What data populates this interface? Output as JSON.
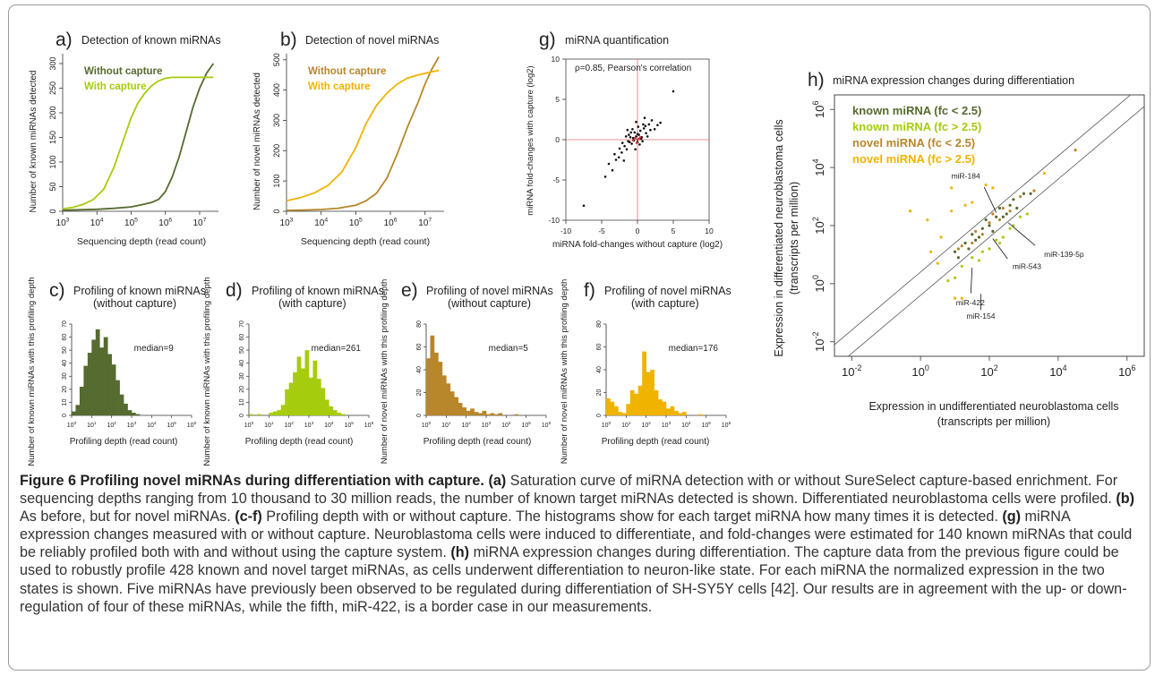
{
  "colors": {
    "known_dark": "#556b2f",
    "known_light": "#a6cc0e",
    "novel_dark": "#b8862b",
    "novel_light": "#f0b300",
    "frame": "#9a9a9a",
    "point": "#111111",
    "hline": "#e07070"
  },
  "caption": {
    "title": "Figure 6 Profiling novel miRNAs during differentiation with capture.",
    "a_tag": "(a)",
    "a_text": "Saturation curve of miRNA detection with or without SureSelect capture-based enrichment. For sequencing depths ranging from 10 thousand to 30 million reads, the number of known target miRNAs detected is shown. Differentiated neuroblastoma cells were profiled.",
    "b_tag": "(b)",
    "b_text": "As before, but for novel miRNAs.",
    "cf_tag": "(c-f)",
    "cf_text": "Profiling depth with or without capture. The histograms show for each target miRNA how many times it is detected.",
    "g_tag": "(g)",
    "g_text": "miRNA expression changes measured with or without capture. Neuroblastoma cells were induced to differentiate, and fold-changes were estimated for 140 known miRNAs that could be reliably profiled both with and without using the capture system.",
    "h_tag": "(h)",
    "h_text": "miRNA expression changes during differentiation. The capture data from the previous figure could be used to robustly profile 428 known and novel target miRNAs, as cells underwent differentiation to neuron-like state. For each miRNA the normalized expression in the two states is shown. Five miRNAs have previously been observed to be regulated during differentiation of SH-SY5Y cells [42]. Our results are in agreement with the up- or down-regulation of four of these miRNAs, while the fifth, miR-422, is a border case in our measurements."
  },
  "chart_data": [
    {
      "id": "a",
      "type": "line",
      "letter": "a)",
      "title": "Detection of known miRNAs",
      "xlabel": "Sequencing depth (read count)",
      "ylabel": "Number of known miRNAs detected",
      "xscale": "log",
      "xlim": [
        3,
        7.55
      ],
      "ylim": [
        0,
        320
      ],
      "xticks": [
        "10",
        "10",
        "10",
        "10",
        "10"
      ],
      "xtick_exp": [
        "3",
        "4",
        "5",
        "6",
        "7"
      ],
      "yticks": [
        "0",
        "50",
        "100",
        "150",
        "200",
        "250",
        "300"
      ],
      "legend_position": "top-left",
      "series": [
        {
          "name": "Without capture",
          "color": "#556b2f",
          "x": [
            3,
            3.5,
            4,
            4.5,
            5,
            5.3,
            5.6,
            5.8,
            6,
            6.2,
            6.4,
            6.6,
            6.8,
            7,
            7.2,
            7.4
          ],
          "y": [
            2,
            3,
            4,
            6,
            9,
            13,
            18,
            24,
            40,
            70,
            110,
            160,
            210,
            250,
            280,
            300
          ]
        },
        {
          "name": "With capture",
          "color": "#a6cc0e",
          "x": [
            3,
            3.3,
            3.6,
            3.9,
            4.2,
            4.5,
            4.8,
            5,
            5.2,
            5.4,
            5.6,
            5.8,
            6,
            6.2,
            6.4,
            7,
            7.4
          ],
          "y": [
            5,
            8,
            14,
            24,
            45,
            90,
            150,
            190,
            220,
            240,
            255,
            265,
            270,
            272,
            272,
            272,
            272
          ]
        }
      ]
    },
    {
      "id": "b",
      "type": "line",
      "letter": "b)",
      "title": "Detection of novel miRNAs",
      "xlabel": "Sequencing depth (read count)",
      "ylabel": "Number of novel miRNAs detected",
      "xscale": "log",
      "xlim": [
        3,
        7.55
      ],
      "ylim": [
        0,
        520
      ],
      "xticks": [
        "10",
        "10",
        "10",
        "10",
        "10"
      ],
      "xtick_exp": [
        "3",
        "4",
        "5",
        "6",
        "7"
      ],
      "yticks": [
        "0",
        "100",
        "200",
        "300",
        "400",
        "500"
      ],
      "legend_position": "top-left",
      "series": [
        {
          "name": "Without capture",
          "color": "#b8862b",
          "x": [
            3,
            3.5,
            4,
            4.5,
            5,
            5.3,
            5.6,
            5.9,
            6.2,
            6.5,
            6.8,
            7,
            7.2,
            7.4
          ],
          "y": [
            3,
            4,
            6,
            10,
            20,
            35,
            60,
            110,
            190,
            280,
            360,
            420,
            470,
            510
          ]
        },
        {
          "name": "With capture",
          "color": "#f0b300",
          "x": [
            3,
            3.4,
            3.8,
            4.2,
            4.6,
            5,
            5.3,
            5.6,
            5.9,
            6.2,
            6.5,
            6.8,
            7.1,
            7.4
          ],
          "y": [
            35,
            45,
            60,
            85,
            130,
            210,
            290,
            350,
            390,
            420,
            440,
            450,
            458,
            465
          ]
        }
      ]
    },
    {
      "id": "g",
      "type": "scatter",
      "letter": "g)",
      "title": "miRNA quantification",
      "xlabel": "miRNA fold-changes without capture (log2)",
      "ylabel": "miRNA fold-changes with capture (log2)",
      "annotation": "ρ=0.85, Pearson's correlation",
      "xlim": [
        -10,
        10
      ],
      "ylim": [
        -10,
        10
      ],
      "xticks": [
        "-10",
        "-5",
        "0",
        "5",
        "10"
      ],
      "yticks": [
        "-10",
        "-5",
        "0",
        "5",
        "10"
      ],
      "points": [
        [
          -7.5,
          -8.2
        ],
        [
          5,
          6
        ],
        [
          -4,
          -3
        ],
        [
          -3.5,
          -3.8
        ],
        [
          -3,
          -2.5
        ],
        [
          -2.6,
          -2.2
        ],
        [
          -2.2,
          -1.6
        ],
        [
          -1.8,
          -0.8
        ],
        [
          -1.5,
          -1.2
        ],
        [
          -1.3,
          -0.2
        ],
        [
          -1,
          0.3
        ],
        [
          -0.8,
          -0.5
        ],
        [
          -0.6,
          0.2
        ],
        [
          -0.4,
          0.9
        ],
        [
          -0.2,
          0.4
        ],
        [
          0,
          -0.3
        ],
        [
          0.2,
          0.6
        ],
        [
          0.4,
          1.1
        ],
        [
          0.6,
          0.3
        ],
        [
          0.9,
          1.4
        ],
        [
          1.2,
          0.8
        ],
        [
          1.6,
          1.9
        ],
        [
          2,
          2.4
        ],
        [
          2.4,
          1.3
        ],
        [
          -0.9,
          0.9
        ],
        [
          -1.2,
          0.6
        ],
        [
          -2.1,
          -0.4
        ],
        [
          -0.3,
          -1.2
        ],
        [
          0.1,
          1.6
        ],
        [
          0.8,
          1.9
        ],
        [
          -1.6,
          0.4
        ],
        [
          -0.5,
          -0.1
        ],
        [
          0.3,
          -0.6
        ],
        [
          1.1,
          1.7
        ],
        [
          -2.5,
          -1.1
        ],
        [
          -1.9,
          -2.6
        ],
        [
          -0.7,
          1.3
        ],
        [
          0.5,
          0.1
        ],
        [
          1.4,
          0.4
        ],
        [
          -3.2,
          -1.8
        ],
        [
          2.8,
          1.8
        ],
        [
          -1.1,
          -0.3
        ],
        [
          0,
          0.7
        ],
        [
          0.7,
          -0.2
        ],
        [
          1.8,
          1.2
        ],
        [
          -4.5,
          -4.6
        ],
        [
          -0.2,
          2.2
        ],
        [
          1,
          2.7
        ],
        [
          -1.4,
          1.2
        ],
        [
          3.2,
          2.1
        ]
      ],
      "red_points": [
        [
          -0.6,
          -0.1
        ],
        [
          -0.3,
          0.2
        ],
        [
          0,
          0
        ],
        [
          0.2,
          0.1
        ],
        [
          -0.1,
          -0.4
        ],
        [
          0.4,
          0.3
        ]
      ]
    },
    {
      "id": "c",
      "type": "bar",
      "letter": "c)",
      "title": "Profiling of known miRNAs",
      "subtitle": "(without capture)",
      "annotation": "median=9",
      "xlabel": "Profiling depth (read count)",
      "ylabel": "Number of known miRNAs with this profiling depth",
      "color": "#556b2f",
      "ylim": [
        0,
        70
      ],
      "xtick_exp": [
        "0",
        "1",
        "2",
        "3",
        "4",
        "5",
        "6"
      ],
      "yticks": [
        "0",
        "10",
        "20",
        "30",
        "40",
        "50",
        "60",
        "70"
      ],
      "values": [
        3,
        8,
        22,
        38,
        48,
        58,
        66,
        52,
        60,
        47,
        39,
        27,
        16,
        9,
        4,
        2,
        1,
        0,
        0,
        0,
        0,
        0,
        0,
        0,
        0,
        0,
        0,
        0,
        0,
        0
      ]
    },
    {
      "id": "d",
      "type": "bar",
      "letter": "d)",
      "title": "Profiling of known miRNAs",
      "subtitle": "(with capture)",
      "annotation": "median=261",
      "xlabel": "Profiling depth (read count)",
      "ylabel": "Number of known miRNAs with this profiling depth",
      "color": "#a6cc0e",
      "ylim": [
        0,
        70
      ],
      "xtick_exp": [
        "0",
        "1",
        "2",
        "3",
        "4",
        "5",
        "6"
      ],
      "yticks": [
        "0",
        "10",
        "20",
        "30",
        "40",
        "50",
        "60",
        "70"
      ],
      "values": [
        1,
        0,
        1,
        0,
        0,
        2,
        3,
        4,
        8,
        20,
        25,
        33,
        45,
        36,
        50,
        29,
        42,
        28,
        21,
        12,
        7,
        4,
        2,
        1,
        0,
        0,
        0,
        0,
        0,
        0
      ]
    },
    {
      "id": "e",
      "type": "bar",
      "letter": "e)",
      "title": "Profiling of novel miRNAs",
      "subtitle": "(without capture)",
      "annotation": "median=5",
      "xlabel": "Profiling depth (read count)",
      "ylabel": "Number of novel miRNAs with this profiling depth",
      "color": "#b8862b",
      "ylim": [
        0,
        80
      ],
      "xtick_exp": [
        "0",
        "1",
        "2",
        "3",
        "4",
        "5",
        "6"
      ],
      "yticks": [
        "0",
        "20",
        "40",
        "60",
        "80"
      ],
      "values": [
        50,
        70,
        55,
        47,
        35,
        28,
        21,
        16,
        11,
        7,
        4,
        6,
        3,
        2,
        4,
        1,
        2,
        1,
        2,
        0,
        0,
        0,
        1,
        0,
        0,
        0,
        0,
        0,
        0,
        0
      ]
    },
    {
      "id": "f",
      "type": "bar",
      "letter": "f)",
      "title": "Profiling of novel miRNAs",
      "subtitle": "(with capture)",
      "annotation": "median=176",
      "xlabel": "Profiling depth (read count)",
      "ylabel": "Number of novel miRNAs with this profiling depth",
      "color": "#f0b300",
      "ylim": [
        0,
        80
      ],
      "xtick_exp": [
        "0",
        "1",
        "2",
        "3",
        "4",
        "5",
        "6"
      ],
      "yticks": [
        "0",
        "20",
        "40",
        "60",
        "80"
      ],
      "values": [
        15,
        12,
        8,
        3,
        2,
        10,
        22,
        19,
        26,
        56,
        38,
        40,
        22,
        14,
        12,
        6,
        8,
        4,
        2,
        3,
        0,
        0,
        0,
        1,
        0,
        0,
        0,
        0,
        0,
        0
      ]
    },
    {
      "id": "h",
      "type": "scatter",
      "letter": "h)",
      "title": "miRNA expression changes during differentiation",
      "xlabel": "Expression in undifferentiated neuroblastoma cells",
      "xlabel2": "(transcripts per million)",
      "ylabel": "Expression in differentiated neuroblastoma cells",
      "ylabel2": "(transcripts per million)",
      "xscale": "log",
      "yscale": "log",
      "xlim": [
        -2.5,
        6.5
      ],
      "ylim": [
        -2.5,
        6.5
      ],
      "xtick_exp": [
        "-2",
        "0",
        "2",
        "4",
        "6"
      ],
      "ytick_exp": [
        "-2",
        "0",
        "2",
        "4",
        "6"
      ],
      "legend": [
        {
          "label": "known miRNA (fc < 2.5)",
          "color": "#556b2f"
        },
        {
          "label": "known miRNA (fc > 2.5)",
          "color": "#a6cc0e"
        },
        {
          "label": "novel miRNA (fc < 2.5)",
          "color": "#b8862b"
        },
        {
          "label": "novel miRNA (fc > 2.5)",
          "color": "#f0b300"
        }
      ],
      "annotations": [
        {
          "label": "miR-184",
          "x": 2.2,
          "y": 2.45
        },
        {
          "label": "miR-139-5p",
          "x": 2.55,
          "y": 2.1
        },
        {
          "label": "miR-543",
          "x": 2.1,
          "y": 1.55
        },
        {
          "label": "miR-422",
          "x": 1.5,
          "y": 0.55
        },
        {
          "label": "miR-154",
          "x": 1.75,
          "y": -0.35
        }
      ],
      "fold_lines": [
        0.4,
        -0.4
      ],
      "points_known_lo": [
        [
          1,
          1.1
        ],
        [
          1.3,
          1.4
        ],
        [
          1.6,
          1.5
        ],
        [
          1.8,
          1.9
        ],
        [
          2,
          2
        ],
        [
          2.2,
          2.3
        ],
        [
          2.4,
          2.3
        ],
        [
          2.6,
          2.7
        ],
        [
          2.8,
          2.6
        ],
        [
          3,
          3.1
        ],
        [
          1.1,
          0.9
        ],
        [
          1.5,
          1.7
        ],
        [
          2.1,
          1.8
        ],
        [
          2.5,
          2.4
        ],
        [
          1.9,
          2.2
        ],
        [
          1.4,
          1.2
        ],
        [
          2.3,
          2.6
        ],
        [
          2.7,
          2.9
        ],
        [
          3.2,
          3.1
        ],
        [
          1.7,
          1.6
        ]
      ],
      "points_known_hi": [
        [
          1.5,
          0.9
        ],
        [
          1.8,
          1.1
        ],
        [
          2.2,
          1.5
        ],
        [
          2.4,
          1.6
        ],
        [
          2.6,
          1.9
        ],
        [
          1.2,
          0.6
        ],
        [
          2.9,
          2.3
        ],
        [
          1,
          0.2
        ],
        [
          2,
          1.2
        ],
        [
          3.1,
          2.4
        ],
        [
          1.7,
          0.8
        ],
        [
          2.3,
          1.4
        ],
        [
          0.8,
          0.1
        ],
        [
          2.7,
          2
        ]
      ],
      "points_novel_lo": [
        [
          1.2,
          1.3
        ],
        [
          1.5,
          1.4
        ],
        [
          1.8,
          1.7
        ],
        [
          2,
          2.1
        ],
        [
          2.3,
          2.2
        ],
        [
          2.6,
          2.5
        ],
        [
          2.9,
          3
        ],
        [
          1.1,
          1.2
        ],
        [
          1.6,
          1.8
        ],
        [
          2.1,
          2.4
        ],
        [
          2.4,
          2.6
        ],
        [
          4.5,
          4.6
        ],
        [
          3.3,
          3.2
        ]
      ],
      "points_novel_hi": [
        [
          -0.3,
          2.5
        ],
        [
          0.3,
          1.1
        ],
        [
          0.2,
          2.2
        ],
        [
          0.9,
          3.3
        ],
        [
          1.3,
          2.7
        ],
        [
          2.1,
          3.3
        ],
        [
          3.6,
          3.8
        ],
        [
          1,
          -0.5
        ],
        [
          1.2,
          -0.5
        ],
        [
          0.5,
          0.7
        ],
        [
          0.9,
          2.5
        ],
        [
          1.5,
          2.8
        ],
        [
          0.6,
          1.6
        ],
        [
          1.9,
          3.4
        ]
      ]
    }
  ]
}
